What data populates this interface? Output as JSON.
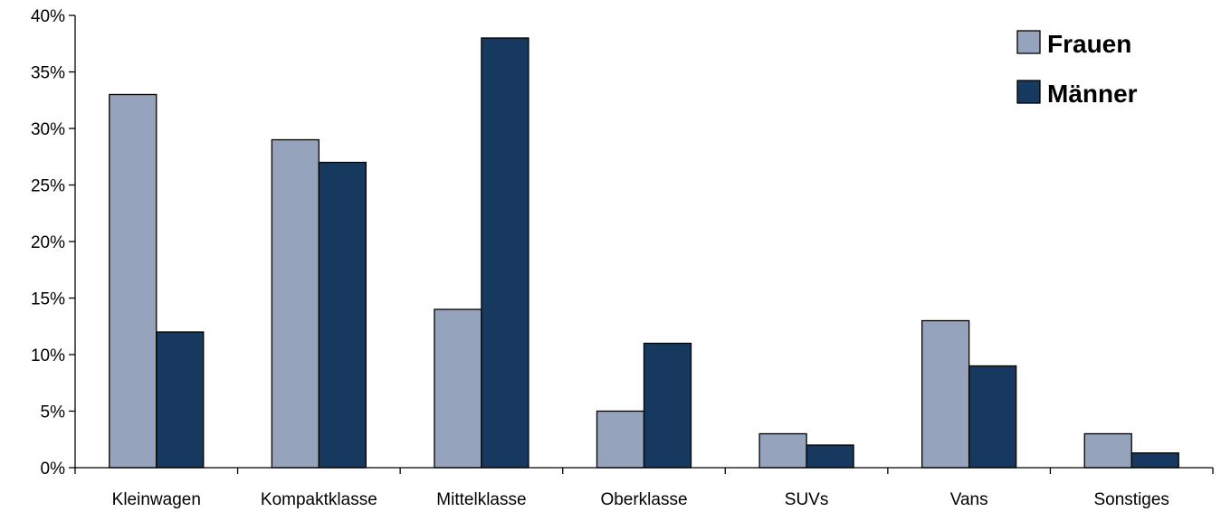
{
  "chart_data": {
    "type": "bar",
    "title": "",
    "xlabel": "",
    "ylabel": "",
    "categories": [
      "Kleinwagen",
      "Kompaktklasse",
      "Mittelklasse",
      "Oberklasse",
      "SUVs",
      "Vans",
      "Sonstiges"
    ],
    "series": [
      {
        "name": "Frauen",
        "values": [
          33,
          29,
          14,
          5,
          3,
          13,
          3
        ],
        "color": "#95a3bd"
      },
      {
        "name": "Männer",
        "values": [
          12,
          27,
          38,
          11,
          2,
          9,
          1.3
        ],
        "color": "#17385f"
      }
    ],
    "ylim": [
      0,
      40
    ],
    "yticks": [
      0,
      5,
      10,
      15,
      20,
      25,
      30,
      35,
      40
    ],
    "ytick_suffix": "%",
    "grid": false,
    "legend_position": "top-right"
  }
}
